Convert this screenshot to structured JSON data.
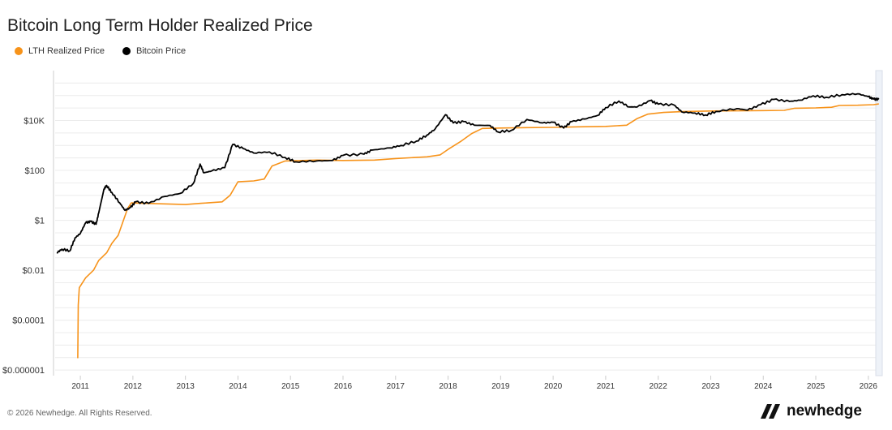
{
  "chart_data": {
    "type": "line",
    "title": "Bitcoin Long Term Holder Realized Price",
    "legend_position": "top-left",
    "y_scale": "log",
    "ylim": [
      6e-07,
      1000000
    ],
    "xlim": [
      2010.52,
      2026.25
    ],
    "grid": true,
    "y_ticks": [
      {
        "v": 10000,
        "label": "$10K"
      },
      {
        "v": 100,
        "label": "$100"
      },
      {
        "v": 1,
        "label": "$1"
      },
      {
        "v": 0.01,
        "label": "$0.01"
      },
      {
        "v": 0.0001,
        "label": "$0.0001"
      },
      {
        "v": 1e-06,
        "label": "$0.000001"
      }
    ],
    "x_ticks": [
      "2011",
      "2012",
      "2013",
      "2014",
      "2015",
      "2016",
      "2017",
      "2018",
      "2019",
      "2020",
      "2021",
      "2022",
      "2023",
      "2024",
      "2025",
      "2026"
    ],
    "series": [
      {
        "name": "LTH Realized Price",
        "color": "#f7931a",
        "points": [
          [
            2010.95,
            3e-06
          ],
          [
            2010.96,
            0.0004
          ],
          [
            2010.98,
            0.002
          ],
          [
            2011.1,
            0.005
          ],
          [
            2011.25,
            0.01
          ],
          [
            2011.35,
            0.025
          ],
          [
            2011.5,
            0.05
          ],
          [
            2011.6,
            0.12
          ],
          [
            2011.72,
            0.25
          ],
          [
            2011.82,
            1
          ],
          [
            2011.9,
            3
          ],
          [
            2011.97,
            5
          ],
          [
            2012.2,
            4.8
          ],
          [
            2013.0,
            4.3
          ],
          [
            2013.3,
            4.8
          ],
          [
            2013.7,
            5.5
          ],
          [
            2013.85,
            10
          ],
          [
            2014.0,
            35
          ],
          [
            2014.3,
            38
          ],
          [
            2014.5,
            45
          ],
          [
            2014.65,
            150
          ],
          [
            2014.9,
            240
          ],
          [
            2015.5,
            260
          ],
          [
            2016.0,
            250
          ],
          [
            2016.6,
            260
          ],
          [
            2017.0,
            300
          ],
          [
            2017.6,
            350
          ],
          [
            2017.85,
            420
          ],
          [
            2018.0,
            700
          ],
          [
            2018.25,
            1500
          ],
          [
            2018.45,
            3000
          ],
          [
            2018.65,
            4800
          ],
          [
            2019.0,
            5000
          ],
          [
            2019.5,
            5200
          ],
          [
            2020.0,
            5300
          ],
          [
            2020.5,
            5600
          ],
          [
            2021.0,
            5800
          ],
          [
            2021.4,
            6500
          ],
          [
            2021.6,
            12000
          ],
          [
            2021.8,
            18000
          ],
          [
            2022.1,
            21000
          ],
          [
            2022.5,
            23000
          ],
          [
            2023.0,
            24000
          ],
          [
            2023.5,
            24500
          ],
          [
            2024.0,
            25000
          ],
          [
            2024.4,
            25500
          ],
          [
            2024.6,
            31000
          ],
          [
            2025.0,
            32000
          ],
          [
            2025.3,
            34000
          ],
          [
            2025.45,
            40000
          ],
          [
            2025.8,
            41000
          ],
          [
            2026.1,
            43000
          ],
          [
            2026.2,
            46000
          ]
        ]
      },
      {
        "name": "Bitcoin Price",
        "color": "#000000",
        "points": [
          [
            2010.55,
            0.05
          ],
          [
            2010.65,
            0.07
          ],
          [
            2010.8,
            0.06
          ],
          [
            2010.9,
            0.2
          ],
          [
            2011.0,
            0.3
          ],
          [
            2011.1,
            0.8
          ],
          [
            2011.2,
            0.9
          ],
          [
            2011.3,
            0.7
          ],
          [
            2011.35,
            2
          ],
          [
            2011.45,
            18
          ],
          [
            2011.5,
            25
          ],
          [
            2011.6,
            13
          ],
          [
            2011.75,
            5
          ],
          [
            2011.85,
            2.5
          ],
          [
            2011.95,
            3.2
          ],
          [
            2012.05,
            5.5
          ],
          [
            2012.3,
            4.8
          ],
          [
            2012.6,
            9
          ],
          [
            2012.9,
            12
          ],
          [
            2013.15,
            30
          ],
          [
            2013.28,
            180
          ],
          [
            2013.35,
            80
          ],
          [
            2013.5,
            95
          ],
          [
            2013.75,
            130
          ],
          [
            2013.9,
            1100
          ],
          [
            2014.1,
            750
          ],
          [
            2014.3,
            500
          ],
          [
            2014.6,
            550
          ],
          [
            2014.9,
            330
          ],
          [
            2015.1,
            220
          ],
          [
            2015.5,
            240
          ],
          [
            2015.8,
            250
          ],
          [
            2016.0,
            400
          ],
          [
            2016.4,
            450
          ],
          [
            2016.55,
            650
          ],
          [
            2016.9,
            800
          ],
          [
            2017.1,
            1000
          ],
          [
            2017.4,
            1500
          ],
          [
            2017.6,
            2600
          ],
          [
            2017.75,
            4500
          ],
          [
            2017.95,
            17000
          ],
          [
            2018.1,
            8000
          ],
          [
            2018.3,
            9000
          ],
          [
            2018.5,
            6500
          ],
          [
            2018.8,
            6300
          ],
          [
            2018.95,
            3500
          ],
          [
            2019.2,
            4000
          ],
          [
            2019.5,
            11000
          ],
          [
            2019.8,
            8000
          ],
          [
            2020.0,
            8500
          ],
          [
            2020.2,
            5000
          ],
          [
            2020.35,
            9000
          ],
          [
            2020.6,
            11500
          ],
          [
            2020.85,
            16000
          ],
          [
            2021.0,
            33000
          ],
          [
            2021.25,
            60000
          ],
          [
            2021.45,
            35000
          ],
          [
            2021.6,
            35000
          ],
          [
            2021.85,
            63000
          ],
          [
            2022.0,
            45000
          ],
          [
            2022.3,
            42000
          ],
          [
            2022.45,
            22000
          ],
          [
            2022.7,
            20000
          ],
          [
            2022.9,
            16500
          ],
          [
            2023.1,
            23000
          ],
          [
            2023.5,
            30000
          ],
          [
            2023.7,
            26000
          ],
          [
            2023.95,
            43000
          ],
          [
            2024.2,
            70000
          ],
          [
            2024.5,
            58000
          ],
          [
            2024.7,
            65000
          ],
          [
            2024.95,
            98000
          ],
          [
            2025.2,
            85000
          ],
          [
            2025.5,
            108000
          ],
          [
            2025.8,
            118000
          ],
          [
            2026.0,
            90000
          ],
          [
            2026.1,
            72000
          ],
          [
            2026.2,
            70000
          ]
        ]
      }
    ]
  },
  "footer": "© 2026 Newhedge. All Rights Reserved.",
  "logo_text": "newhedge"
}
